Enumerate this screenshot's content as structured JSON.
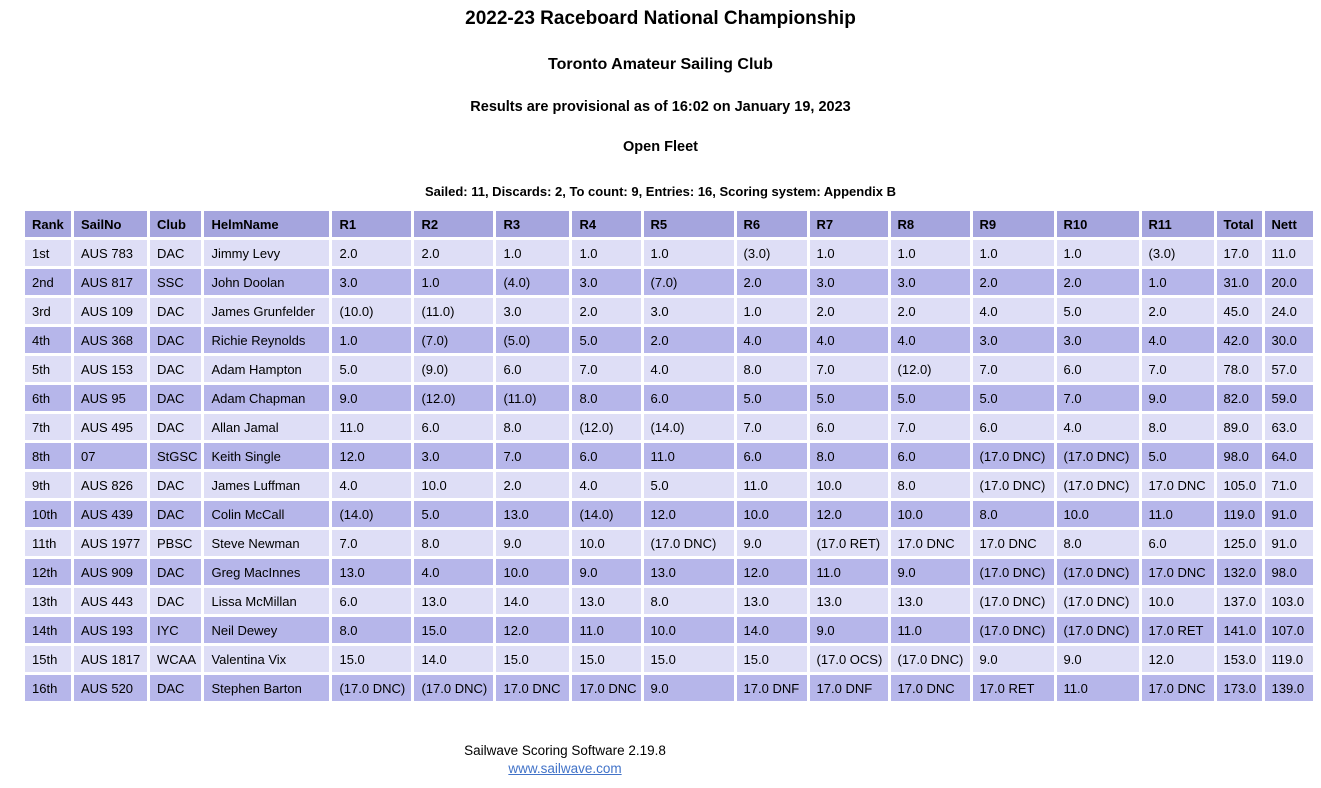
{
  "page": {
    "title": "2022-23 Raceboard National Championship",
    "club": "Toronto Amateur Sailing Club",
    "provisional": "Results are provisional as of 16:02 on January 19, 2023",
    "fleet": "Open Fleet",
    "summary": "Sailed: 11, Discards: 2, To count: 9, Entries: 16, Scoring system: Appendix B"
  },
  "results_table": {
    "columns": [
      "Rank",
      "SailNo",
      "Club",
      "HelmName",
      "R1",
      "R2",
      "R3",
      "R4",
      "R5",
      "R6",
      "R7",
      "R8",
      "R9",
      "R10",
      "R11",
      "Total",
      "Nett"
    ],
    "rows": [
      [
        "1st",
        "AUS 783",
        "DAC",
        "Jimmy Levy",
        "2.0",
        "2.0",
        "1.0",
        "1.0",
        "1.0",
        "(3.0)",
        "1.0",
        "1.0",
        "1.0",
        "1.0",
        "(3.0)",
        "17.0",
        "11.0"
      ],
      [
        "2nd",
        "AUS 817",
        "SSC",
        "John Doolan",
        "3.0",
        "1.0",
        "(4.0)",
        "3.0",
        "(7.0)",
        "2.0",
        "3.0",
        "3.0",
        "2.0",
        "2.0",
        "1.0",
        "31.0",
        "20.0"
      ],
      [
        "3rd",
        "AUS 109",
        "DAC",
        "James Grunfelder",
        "(10.0)",
        "(11.0)",
        "3.0",
        "2.0",
        "3.0",
        "1.0",
        "2.0",
        "2.0",
        "4.0",
        "5.0",
        "2.0",
        "45.0",
        "24.0"
      ],
      [
        "4th",
        "AUS 368",
        "DAC",
        "Richie Reynolds",
        "1.0",
        "(7.0)",
        "(5.0)",
        "5.0",
        "2.0",
        "4.0",
        "4.0",
        "4.0",
        "3.0",
        "3.0",
        "4.0",
        "42.0",
        "30.0"
      ],
      [
        "5th",
        "AUS 153",
        "DAC",
        "Adam Hampton",
        "5.0",
        "(9.0)",
        "6.0",
        "7.0",
        "4.0",
        "8.0",
        "7.0",
        "(12.0)",
        "7.0",
        "6.0",
        "7.0",
        "78.0",
        "57.0"
      ],
      [
        "6th",
        "AUS 95",
        "DAC",
        "Adam Chapman",
        "9.0",
        "(12.0)",
        "(11.0)",
        "8.0",
        "6.0",
        "5.0",
        "5.0",
        "5.0",
        "5.0",
        "7.0",
        "9.0",
        "82.0",
        "59.0"
      ],
      [
        "7th",
        "AUS 495",
        "DAC",
        "Allan Jamal",
        "11.0",
        "6.0",
        "8.0",
        "(12.0)",
        "(14.0)",
        "7.0",
        "6.0",
        "7.0",
        "6.0",
        "4.0",
        "8.0",
        "89.0",
        "63.0"
      ],
      [
        "8th",
        "07",
        "StGSC",
        "Keith Single",
        "12.0",
        "3.0",
        "7.0",
        "6.0",
        "11.0",
        "6.0",
        "8.0",
        "6.0",
        "(17.0 DNC)",
        "(17.0 DNC)",
        "5.0",
        "98.0",
        "64.0"
      ],
      [
        "9th",
        "AUS 826",
        "DAC",
        "James Luffman",
        "4.0",
        "10.0",
        "2.0",
        "4.0",
        "5.0",
        "11.0",
        "10.0",
        "8.0",
        "(17.0 DNC)",
        "(17.0 DNC)",
        "17.0 DNC",
        "105.0",
        "71.0"
      ],
      [
        "10th",
        "AUS 439",
        "DAC",
        "Colin McCall",
        "(14.0)",
        "5.0",
        "13.0",
        "(14.0)",
        "12.0",
        "10.0",
        "12.0",
        "10.0",
        "8.0",
        "10.0",
        "11.0",
        "119.0",
        "91.0"
      ],
      [
        "11th",
        "AUS 1977",
        "PBSC",
        "Steve Newman",
        "7.0",
        "8.0",
        "9.0",
        "10.0",
        "(17.0 DNC)",
        "9.0",
        "(17.0 RET)",
        "17.0 DNC",
        "17.0 DNC",
        "8.0",
        "6.0",
        "125.0",
        "91.0"
      ],
      [
        "12th",
        "AUS 909",
        "DAC",
        "Greg MacInnes",
        "13.0",
        "4.0",
        "10.0",
        "9.0",
        "13.0",
        "12.0",
        "11.0",
        "9.0",
        "(17.0 DNC)",
        "(17.0 DNC)",
        "17.0 DNC",
        "132.0",
        "98.0"
      ],
      [
        "13th",
        "AUS 443",
        "DAC",
        "Lissa McMillan",
        "6.0",
        "13.0",
        "14.0",
        "13.0",
        "8.0",
        "13.0",
        "13.0",
        "13.0",
        "(17.0 DNC)",
        "(17.0 DNC)",
        "10.0",
        "137.0",
        "103.0"
      ],
      [
        "14th",
        "AUS 193",
        "IYC",
        "Neil Dewey",
        "8.0",
        "15.0",
        "12.0",
        "11.0",
        "10.0",
        "14.0",
        "9.0",
        "11.0",
        "(17.0 DNC)",
        "(17.0 DNC)",
        "17.0 RET",
        "141.0",
        "107.0"
      ],
      [
        "15th",
        "AUS 1817",
        "WCAA",
        "Valentina Vix",
        "15.0",
        "14.0",
        "15.0",
        "15.0",
        "15.0",
        "15.0",
        "(17.0 OCS)",
        "(17.0 DNC)",
        "9.0",
        "9.0",
        "12.0",
        "153.0",
        "119.0"
      ],
      [
        "16th",
        "AUS 520",
        "DAC",
        "Stephen Barton",
        "(17.0 DNC)",
        "(17.0 DNC)",
        "17.0 DNC",
        "17.0 DNC",
        "9.0",
        "17.0 DNF",
        "17.0 DNF",
        "17.0 DNC",
        "17.0 RET",
        "11.0",
        "17.0 DNC",
        "173.0",
        "139.0"
      ]
    ]
  },
  "footer": {
    "software": "Sailwave Scoring Software 2.19.8",
    "link": "www.sailwave.com"
  },
  "colors": {
    "header_bg": "#a5a5de",
    "row_light": "#dedef6",
    "row_dark": "#b6b6ea",
    "link": "#4273c8"
  }
}
